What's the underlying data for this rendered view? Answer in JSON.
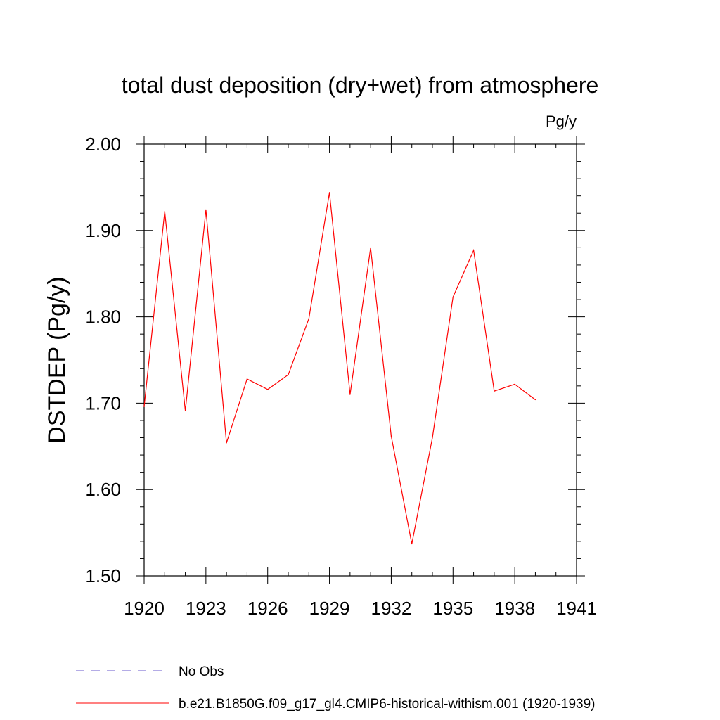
{
  "chart_data": {
    "type": "line",
    "title": "total dust deposition (dry+wet) from atmosphere",
    "units_label": "Pg/y",
    "ylabel": "DSTDEP  (Pg/y)",
    "xlabel": "",
    "xlim": [
      1920,
      1941
    ],
    "ylim": [
      1.5,
      2.0
    ],
    "x_ticks": [
      1920,
      1923,
      1926,
      1929,
      1932,
      1935,
      1938,
      1941
    ],
    "x_tick_labels": [
      "1920",
      "1923",
      "1926",
      "1929",
      "1932",
      "1935",
      "1938",
      "1941"
    ],
    "y_ticks": [
      1.5,
      1.6,
      1.7,
      1.8,
      1.9,
      2.0
    ],
    "y_tick_labels": [
      "1.50",
      "1.60",
      "1.70",
      "1.80",
      "1.90",
      "2.00"
    ],
    "grid": false,
    "legend_position": "bottom-left",
    "series": [
      {
        "name": "No Obs",
        "color": "#6a5acd",
        "dash": true,
        "x": [],
        "values": []
      },
      {
        "name": "b.e21.B1850G.f09_g17_gl4.CMIP6-historical-withism.001 (1920-1939)",
        "color": "#ff0000",
        "dash": false,
        "x": [
          1920,
          1921,
          1922,
          1923,
          1924,
          1925,
          1926,
          1927,
          1928,
          1929,
          1930,
          1931,
          1932,
          1933,
          1934,
          1935,
          1936,
          1937,
          1938,
          1939
        ],
        "values": [
          1.696,
          1.922,
          1.691,
          1.924,
          1.654,
          1.728,
          1.716,
          1.733,
          1.798,
          1.944,
          1.71,
          1.88,
          1.662,
          1.537,
          1.66,
          1.823,
          1.877,
          1.714,
          1.722,
          1.704
        ]
      }
    ]
  }
}
